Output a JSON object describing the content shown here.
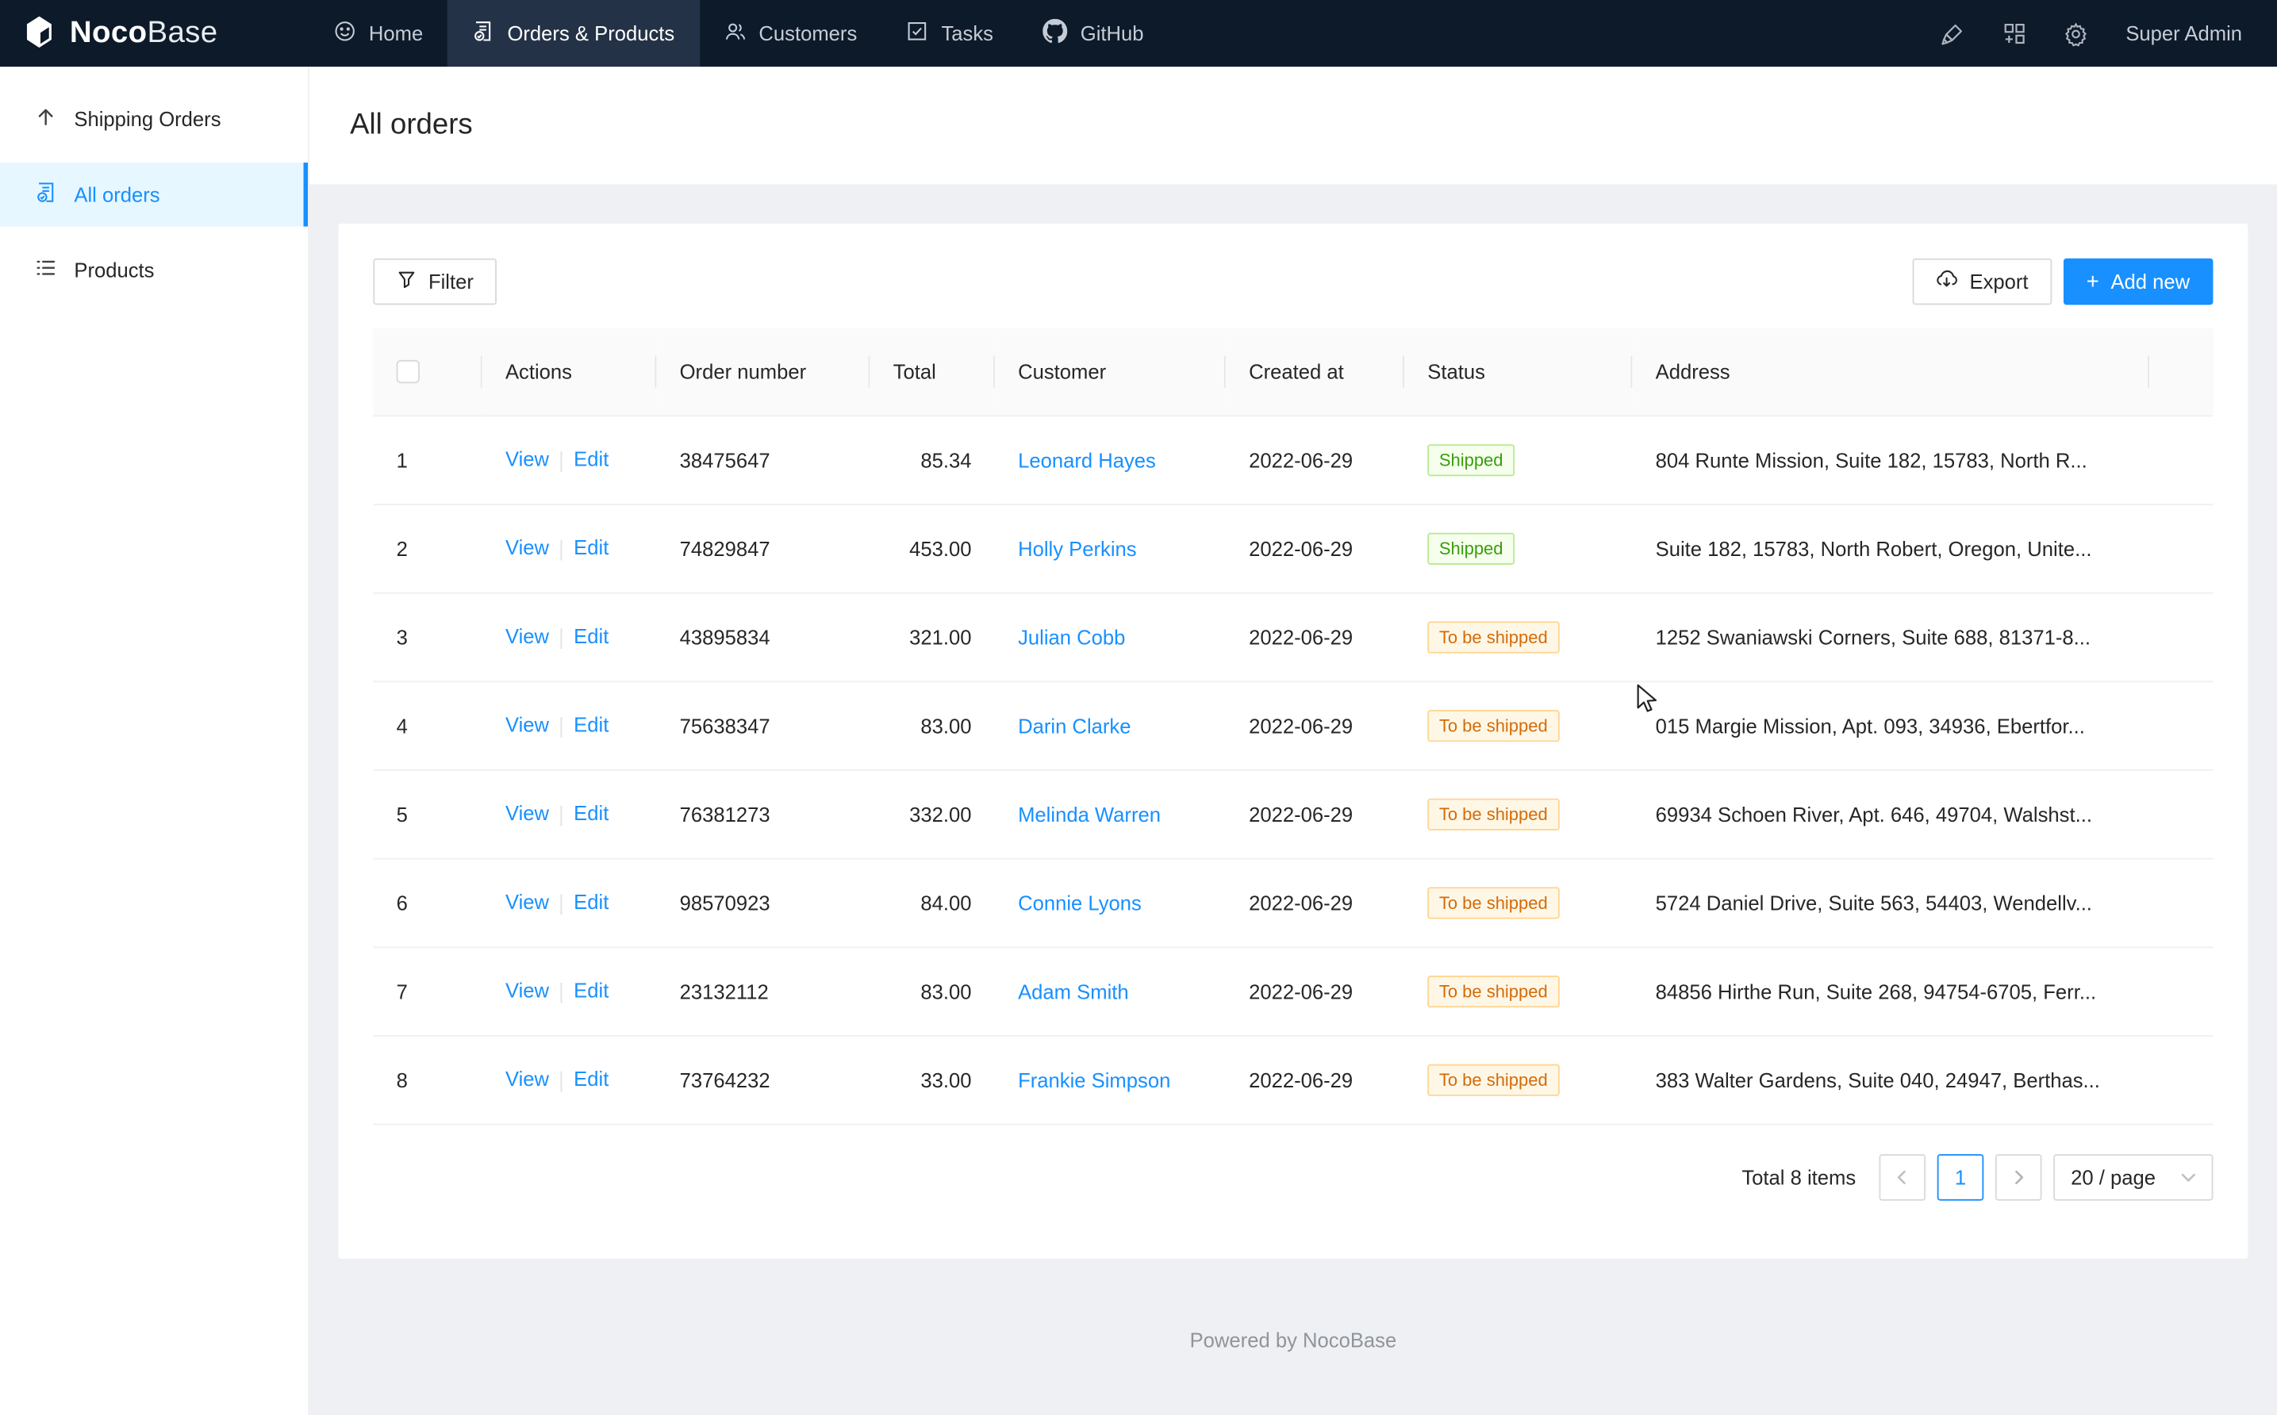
{
  "nav": {
    "logo": {
      "bold": "Noco",
      "light": "Base"
    },
    "tabs": [
      {
        "label": "Home",
        "icon": "smiley-icon",
        "active": false
      },
      {
        "label": "Orders & Products",
        "icon": "order-document-icon",
        "active": true
      },
      {
        "label": "Customers",
        "icon": "customers-icon",
        "active": false
      },
      {
        "label": "Tasks",
        "icon": "task-check-icon",
        "active": false
      },
      {
        "label": "GitHub",
        "icon": "github-icon",
        "active": false
      }
    ],
    "right_icons": [
      "highlighter-icon",
      "plugin-blocks-icon",
      "gear-icon"
    ],
    "user": "Super Admin"
  },
  "sidebar": {
    "items": [
      {
        "label": "Shipping Orders",
        "icon": "arrow-up-icon",
        "active": false
      },
      {
        "label": "All orders",
        "icon": "order-document-icon",
        "active": true
      },
      {
        "label": "Products",
        "icon": "list-icon",
        "active": false
      }
    ]
  },
  "page": {
    "title": "All orders"
  },
  "toolbar": {
    "filter": "Filter",
    "export": "Export",
    "add_new": "Add new",
    "plus": "+"
  },
  "table": {
    "columns": [
      "",
      "Actions",
      "Order number",
      "Total",
      "Customer",
      "Created at",
      "Status",
      "Address",
      ""
    ],
    "rows": [
      {
        "index": "1",
        "actions": [
          "View",
          "Edit"
        ],
        "order_number": "38475647",
        "total": "85.34",
        "customer": "Leonard Hayes",
        "created_at": "2022-06-29",
        "status": "Shipped",
        "status_type": "success",
        "address": "804 Runte Mission, Suite 182, 15783, North R..."
      },
      {
        "index": "2",
        "actions": [
          "View",
          "Edit"
        ],
        "order_number": "74829847",
        "total": "453.00",
        "customer": "Holly Perkins",
        "created_at": "2022-06-29",
        "status": "Shipped",
        "status_type": "success",
        "address": "Suite 182, 15783, North Robert, Oregon, Unite..."
      },
      {
        "index": "3",
        "actions": [
          "View",
          "Edit"
        ],
        "order_number": "43895834",
        "total": "321.00",
        "customer": "Julian Cobb",
        "created_at": "2022-06-29",
        "status": "To be shipped",
        "status_type": "warning",
        "address": "1252 Swaniawski Corners, Suite 688, 81371-8..."
      },
      {
        "index": "4",
        "actions": [
          "View",
          "Edit"
        ],
        "order_number": "75638347",
        "total": "83.00",
        "customer": "Darin Clarke",
        "created_at": "2022-06-29",
        "status": "To be shipped",
        "status_type": "warning",
        "address": "015 Margie Mission, Apt. 093, 34936, Ebertfor..."
      },
      {
        "index": "5",
        "actions": [
          "View",
          "Edit"
        ],
        "order_number": "76381273",
        "total": "332.00",
        "customer": "Melinda Warren",
        "created_at": "2022-06-29",
        "status": "To be shipped",
        "status_type": "warning",
        "address": "69934 Schoen River, Apt. 646, 49704, Walshst..."
      },
      {
        "index": "6",
        "actions": [
          "View",
          "Edit"
        ],
        "order_number": "98570923",
        "total": "84.00",
        "customer": "Connie Lyons",
        "created_at": "2022-06-29",
        "status": "To be shipped",
        "status_type": "warning",
        "address": "5724 Daniel Drive, Suite 563, 54403, Wendellv..."
      },
      {
        "index": "7",
        "actions": [
          "View",
          "Edit"
        ],
        "order_number": "23132112",
        "total": "83.00",
        "customer": "Adam Smith",
        "created_at": "2022-06-29",
        "status": "To be shipped",
        "status_type": "warning",
        "address": "84856 Hirthe Run, Suite 268, 94754-6705, Ferr..."
      },
      {
        "index": "8",
        "actions": [
          "View",
          "Edit"
        ],
        "order_number": "73764232",
        "total": "33.00",
        "customer": "Frankie Simpson",
        "created_at": "2022-06-29",
        "status": "To be shipped",
        "status_type": "warning",
        "address": "383 Walter Gardens, Suite 040, 24947, Berthas..."
      }
    ]
  },
  "pagination": {
    "total_text": "Total 8 items",
    "current_page": "1",
    "page_size": "20 / page"
  },
  "footer": {
    "text": "Powered by NocoBase"
  },
  "colors": {
    "accent": "#1890ff",
    "nav_bg": "#0d1a29",
    "nav_active_bg": "#243247",
    "success_text": "#389e0d",
    "success_bg": "#f6ffed",
    "success_border": "#b7eb8f",
    "warning_text": "#d46b08",
    "warning_bg": "#fff7e6",
    "warning_border": "#ffd591"
  }
}
